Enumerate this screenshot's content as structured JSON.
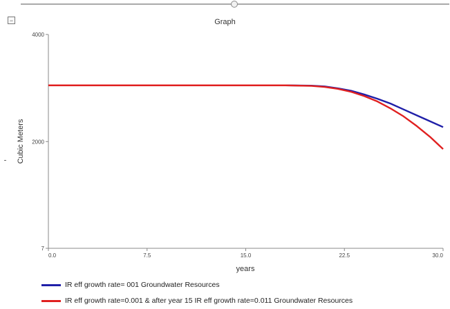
{
  "chart_data": {
    "type": "line",
    "title": "Graph",
    "xlabel": "years",
    "ylabel": "Cubic Meters",
    "xlim": [
      0,
      30
    ],
    "ylim": [
      7,
      4000
    ],
    "x_ticks": [
      {
        "value": 0,
        "label": "0.0"
      },
      {
        "value": 7.5,
        "label": "7.5"
      },
      {
        "value": 15,
        "label": "15.0"
      },
      {
        "value": 22.5,
        "label": "22.5"
      },
      {
        "value": 30,
        "label": "30.0"
      }
    ],
    "y_ticks": [
      {
        "value": 4000,
        "label": "4000"
      },
      {
        "value": 2000,
        "label": "2000"
      },
      {
        "value": 7,
        "label": "7"
      }
    ],
    "grid": false,
    "legend_position": "bottom",
    "series": [
      {
        "name": "IR eff growth rate= 001 Groundwater Resources",
        "color": "#1f1fa8",
        "x": [
          0,
          15,
          18,
          20,
          21,
          22,
          23,
          24,
          25,
          26,
          27,
          28,
          29,
          30
        ],
        "y": [
          3050,
          3050,
          3050,
          3045,
          3030,
          2995,
          2950,
          2880,
          2800,
          2710,
          2600,
          2490,
          2380,
          2270
        ]
      },
      {
        "name": "IR eff growth rate=0.001 & after year 15 IR eff growth rate=0.011 Groundwater Resources",
        "color": "#e02020",
        "x": [
          0,
          15,
          18,
          20,
          21,
          22,
          23,
          24,
          25,
          26,
          27,
          28,
          29,
          30
        ],
        "y": [
          3050,
          3050,
          3050,
          3040,
          3020,
          2985,
          2930,
          2850,
          2750,
          2620,
          2470,
          2290,
          2090,
          1860
        ]
      }
    ]
  },
  "ui": {
    "collapse_icon": "minus-box-icon",
    "slider_icon": "slider-knob-icon"
  }
}
